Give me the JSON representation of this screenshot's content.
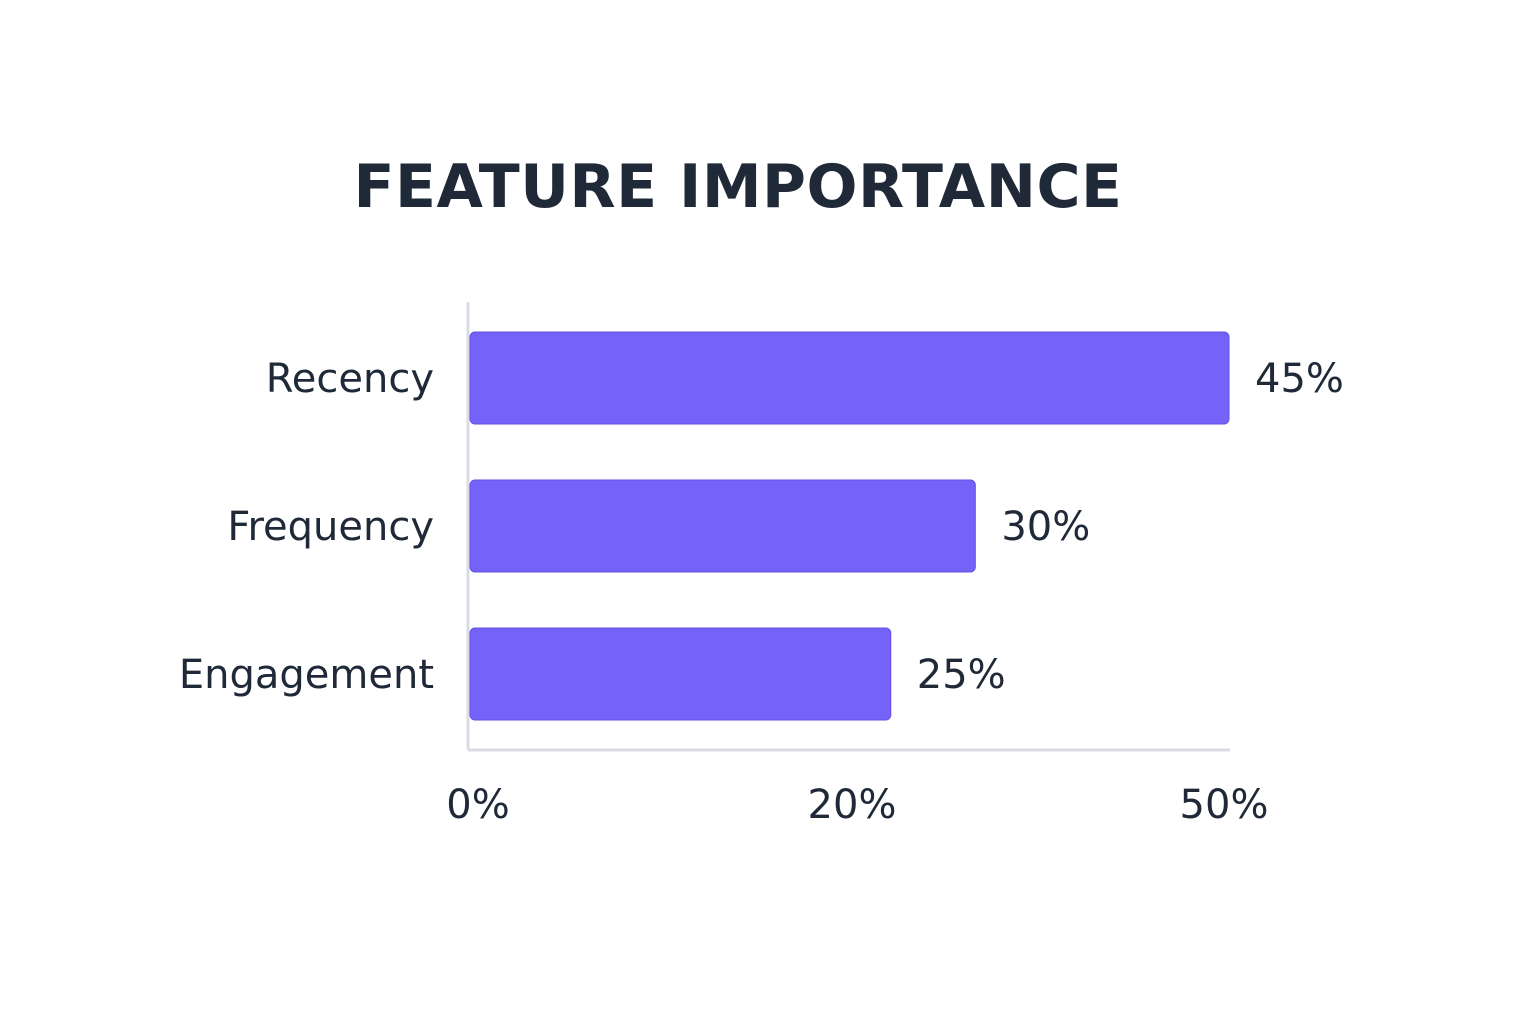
{
  "chart_data": {
    "type": "bar",
    "orientation": "horizontal",
    "title": "FEATURE IMPORTANCE",
    "categories": [
      "Recency",
      "Frequency",
      "Engagement"
    ],
    "values": [
      45,
      30,
      25
    ],
    "value_labels": [
      "45%",
      "30%",
      "25%"
    ],
    "x_ticks": [
      {
        "value": 0,
        "label": "0%"
      },
      {
        "value": 20,
        "label": "20%"
      },
      {
        "value": 50,
        "label": "50%"
      }
    ],
    "xlim": [
      0,
      45
    ],
    "grid": false,
    "legend": "none",
    "colors": {
      "bar": "#7463f6",
      "bar_border": "#6352e8",
      "axis": "#d9dce6",
      "text": "#1f2937"
    }
  }
}
